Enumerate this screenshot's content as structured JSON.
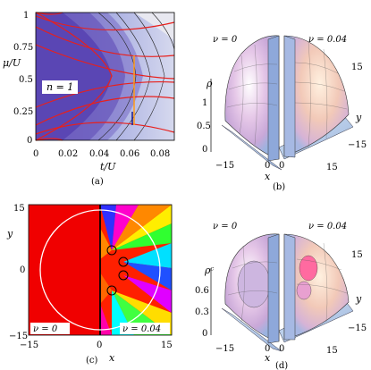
{
  "panel_a": {
    "caption": "(a)",
    "xlabel": "t/U",
    "ylabel": "μ/U",
    "x_ticks": [
      "0",
      "0.02",
      "0.04",
      "0.06",
      "0.08"
    ],
    "y_ticks": [
      "0",
      "0.25",
      "0.5",
      "0.75",
      "1"
    ],
    "region_label": "n = 1"
  },
  "panel_b": {
    "caption": "(b)",
    "left_label": "ν = 0",
    "right_label": "ν = 0.04",
    "zlabel": "ρ",
    "z_ticks": [
      "1",
      "0.5",
      "0"
    ],
    "xlabel": "x",
    "ylabel": "y",
    "x_ticks": [
      "−15",
      "0",
      "15"
    ],
    "y_ticks": [
      "15",
      "0",
      "−15"
    ]
  },
  "panel_c": {
    "caption": "(c)",
    "xlabel": "x",
    "ylabel": "y",
    "x_ticks": [
      "−15",
      "0",
      "15"
    ],
    "y_ticks": [
      "15",
      "0",
      "−15"
    ],
    "left_label": "ν = 0",
    "right_label": "ν = 0.04"
  },
  "panel_d": {
    "caption": "(d)",
    "left_label": "ν = 0",
    "right_label": "ν = 0.04",
    "zlabel": "ρᶜ",
    "z_ticks": [
      "0.6",
      "0.3",
      "0"
    ],
    "xlabel": "x",
    "ylabel": "y",
    "x_ticks": [
      "−15",
      "0",
      "15"
    ],
    "y_ticks": [
      "15",
      "0",
      "−15"
    ]
  },
  "colors": {
    "mott": "#5a46b4",
    "superfluid_light": "#c8cdee",
    "contour_red": "#e8201c",
    "orange_line": "#ff9a1a",
    "phase_red": "#f00000"
  }
}
